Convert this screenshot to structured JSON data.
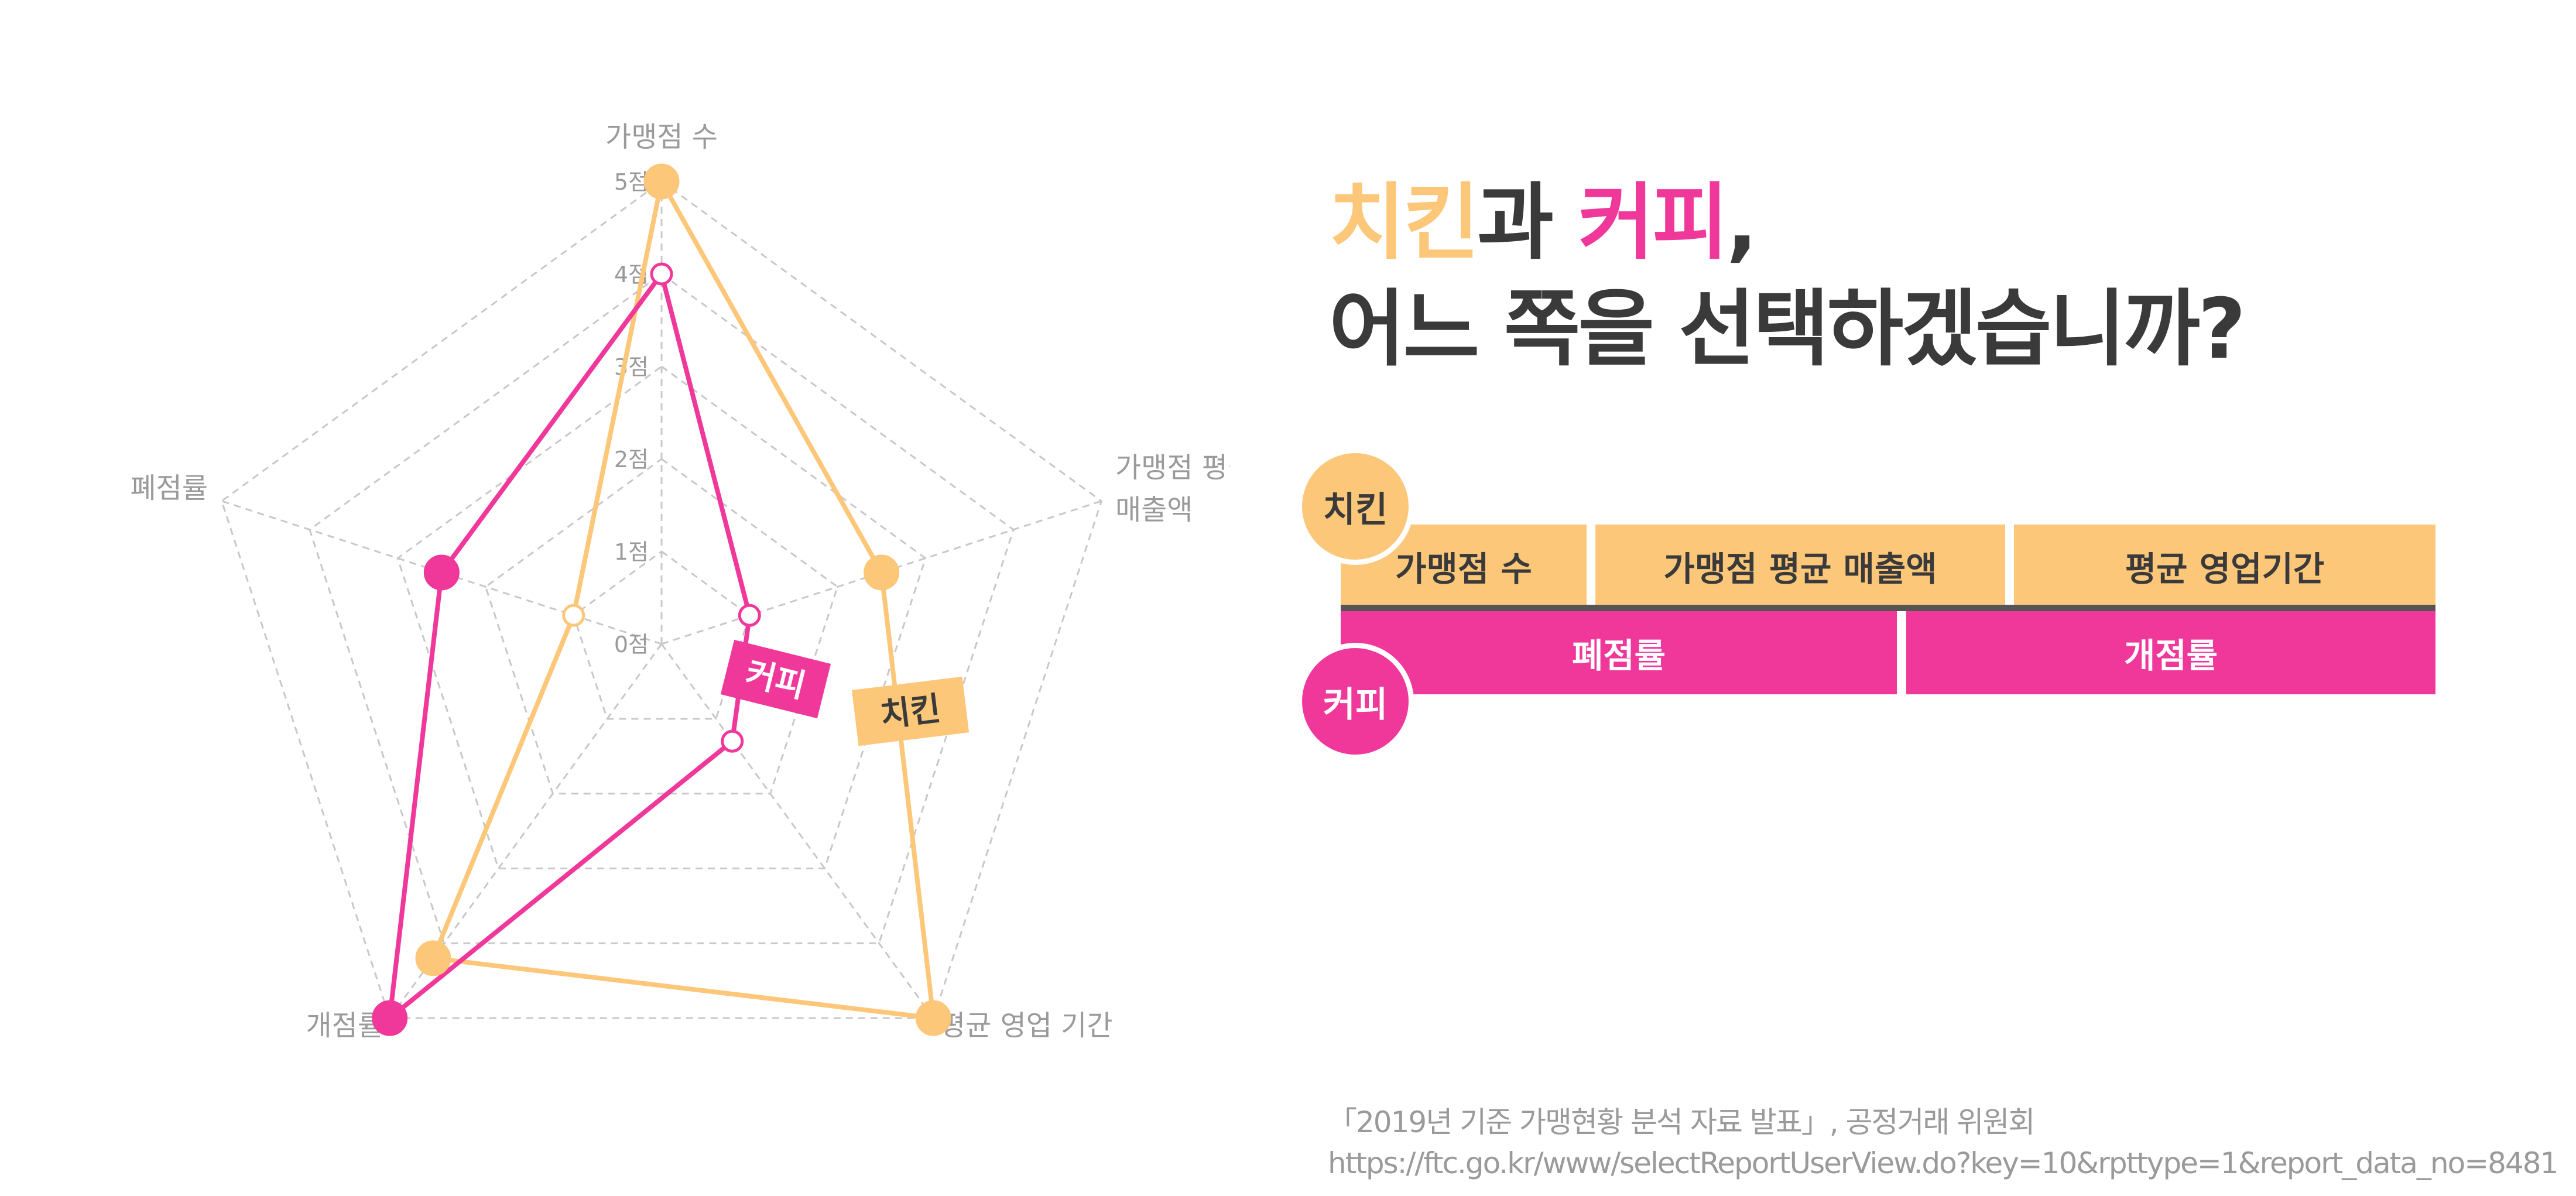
{
  "colors": {
    "chicken": "#fdc77a",
    "coffee": "#f0389a",
    "text_dark": "#3a3a3a",
    "text_gray": "#9a9a9a"
  },
  "headline": {
    "chicken": "치킨",
    "and": "과 ",
    "coffee": "커피",
    "comma": ",",
    "line2": "어느 쪽을 선택하겠습니까?"
  },
  "comparison": {
    "chicken_badge": "치킨",
    "coffee_badge": "커피",
    "chicken_items": [
      "가맹점 수",
      "가맹점 평균 매출액",
      "평균 영업기간"
    ],
    "coffee_items": [
      "폐점률",
      "개점률"
    ]
  },
  "source": {
    "line1": "「2019년 기준 가맹현황 분석 자료 발표」, 공정거래 위원회",
    "line2": "https://ftc.go.kr/www/selectReportUserView.do?key=10&rpttype=1&report_data_no=8481"
  },
  "chart_data": {
    "type": "radar",
    "axes": [
      "가맹점 수",
      "가맹점 평균\n매출액",
      "평균 영업 기간",
      "개점률",
      "폐점률"
    ],
    "ticks": [
      "0점",
      "1점",
      "2점",
      "3점",
      "4점",
      "5점"
    ],
    "range": [
      0,
      5
    ],
    "grid": true,
    "series": [
      {
        "name": "치킨",
        "color": "#fdc77a",
        "values": [
          5,
          2.5,
          5,
          4.2,
          1
        ]
      },
      {
        "name": "커피",
        "color": "#f0389a",
        "values": [
          4,
          1,
          1.3,
          5,
          2.5
        ]
      }
    ]
  }
}
